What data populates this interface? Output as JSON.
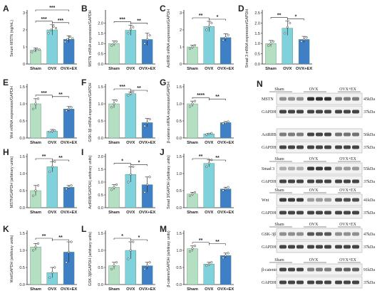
{
  "chart_data": [
    {
      "type": "bar",
      "panel": "A",
      "ylabel": "Serum MSTN (ng/mL)",
      "ylim": [
        0,
        3
      ],
      "yticks": [
        0,
        1,
        2,
        3
      ],
      "categories": [
        "Sham",
        "OVX",
        "OVX+EX"
      ],
      "values": [
        0.82,
        2.0,
        1.45
      ],
      "errors": [
        0.12,
        0.3,
        0.2
      ],
      "points": [
        [
          0.7,
          0.8,
          0.9,
          0.85
        ],
        [
          1.8,
          2.0,
          2.2,
          2.1
        ],
        [
          1.3,
          1.45,
          1.6,
          1.5
        ]
      ],
      "significance": [
        {
          "pair": "Sham-OVX",
          "label": "***"
        },
        {
          "pair": "Sham-OVX+EX",
          "label": "***"
        },
        {
          "pair": "OVX-OVX+EX",
          "label": "***"
        }
      ]
    },
    {
      "type": "bar",
      "panel": "B",
      "ylabel": "MSTN mRNA expression/GAPDH",
      "ylim": [
        0,
        2.5
      ],
      "yticks": [
        0.0,
        0.5,
        1.0,
        1.5,
        2.0
      ],
      "categories": [
        "Sham",
        "OVX",
        "OVX+EX"
      ],
      "values": [
        1.0,
        1.65,
        1.2
      ],
      "errors": [
        0.12,
        0.25,
        0.3
      ],
      "points": [
        [
          0.9,
          1.0,
          1.1
        ],
        [
          1.5,
          1.7,
          1.8
        ],
        [
          1.0,
          1.2,
          1.4
        ]
      ],
      "significance": [
        {
          "pair": "Sham-OVX",
          "label": "***"
        },
        {
          "pair": "OVX-OVX+EX",
          "label": "**"
        }
      ]
    },
    {
      "type": "bar",
      "panel": "C",
      "ylabel": "ActRIIB mRNA expression/GAPDH",
      "ylim": [
        0,
        3
      ],
      "yticks": [
        0,
        1,
        2,
        3
      ],
      "categories": [
        "Sham",
        "OVX",
        "OVX+EX"
      ],
      "values": [
        1.0,
        2.2,
        1.55
      ],
      "errors": [
        0.1,
        0.3,
        0.22
      ],
      "points": [
        [
          0.9,
          1.0,
          1.1
        ],
        [
          2.0,
          2.2,
          2.4
        ],
        [
          1.4,
          1.55,
          1.7
        ]
      ],
      "significance": [
        {
          "pair": "Sham-OVX",
          "label": "**"
        },
        {
          "pair": "OVX-OVX+EX",
          "label": "*"
        }
      ]
    },
    {
      "type": "bar",
      "panel": "D",
      "ylabel": "Smad 3 mRNA expression/GAPDH",
      "ylim": [
        0,
        2.5
      ],
      "yticks": [
        0.0,
        0.5,
        1.0,
        1.5,
        2.0,
        2.5
      ],
      "categories": [
        "Sham",
        "OVX",
        "OVX+EX"
      ],
      "values": [
        1.0,
        1.75,
        1.2
      ],
      "errors": [
        0.15,
        0.35,
        0.15
      ],
      "points": [
        [
          0.9,
          1.0,
          1.1
        ],
        [
          1.5,
          1.8,
          2.0
        ],
        [
          1.1,
          1.2,
          1.3
        ]
      ],
      "significance": [
        {
          "pair": "Sham-OVX",
          "label": "**"
        },
        {
          "pair": "OVX-OVX+EX",
          "label": "*"
        }
      ]
    },
    {
      "type": "bar",
      "panel": "E",
      "ylabel": "Wnt mRNA expression/GAPDH",
      "ylim": [
        0,
        1.5
      ],
      "yticks": [
        0.0,
        0.5,
        1.0,
        1.5
      ],
      "categories": [
        "Sham",
        "OVX",
        "OVX+EX"
      ],
      "values": [
        1.0,
        0.2,
        0.85
      ],
      "errors": [
        0.15,
        0.05,
        0.07
      ],
      "points": [
        [
          0.85,
          1.0,
          1.15
        ],
        [
          0.18,
          0.2,
          0.22
        ],
        [
          0.8,
          0.85,
          0.9
        ]
      ],
      "significance": [
        {
          "pair": "Sham-OVX",
          "label": "***"
        },
        {
          "pair": "OVX-OVX+EX",
          "label": "**"
        }
      ]
    },
    {
      "type": "bar",
      "panel": "F",
      "ylabel": "GSK-3β mRNA expression/GAPDH",
      "ylim": [
        0,
        1.5
      ],
      "yticks": [
        0.0,
        0.5,
        1.0,
        1.5
      ],
      "categories": [
        "Sham",
        "OVX",
        "OVX+EX"
      ],
      "values": [
        1.0,
        1.3,
        0.45
      ],
      "errors": [
        0.12,
        0.05,
        0.12
      ],
      "points": [
        [
          0.9,
          1.0,
          1.1
        ],
        [
          1.25,
          1.3,
          1.35
        ],
        [
          0.35,
          0.45,
          0.55
        ]
      ],
      "significance": [
        {
          "pair": "Sham-OVX",
          "label": "***"
        },
        {
          "pair": "OVX-OVX+EX",
          "label": "**"
        }
      ]
    },
    {
      "type": "bar",
      "panel": "G",
      "ylabel": "β-catenin mRNA expression/GAPDH",
      "ylim": [
        0,
        1.5
      ],
      "yticks": [
        0.0,
        0.5,
        1.0,
        1.5
      ],
      "categories": [
        "Sham",
        "OVX",
        "OVX+EX"
      ],
      "values": [
        1.0,
        0.12,
        0.45
      ],
      "errors": [
        0.08,
        0.02,
        0.03
      ],
      "points": [
        [
          0.92,
          1.0,
          1.08
        ],
        [
          0.1,
          0.12,
          0.14
        ],
        [
          0.42,
          0.45,
          0.48
        ]
      ],
      "significance": [
        {
          "pair": "Sham-OVX",
          "label": "****"
        },
        {
          "pair": "OVX-OVX+EX",
          "label": "**"
        }
      ]
    },
    {
      "type": "bar",
      "panel": "H",
      "ylabel": "MSTN/GAPDH (arbitrary units)",
      "ylim": [
        0,
        1.5
      ],
      "yticks": [
        0.0,
        0.5,
        1.0,
        1.5
      ],
      "categories": [
        "Sham",
        "OVX",
        "OVX+EX"
      ],
      "values": [
        0.5,
        1.2,
        0.6
      ],
      "errors": [
        0.15,
        0.15,
        0.05
      ],
      "points": [
        [
          0.35,
          0.5,
          0.65
        ],
        [
          1.05,
          1.2,
          1.35
        ],
        [
          0.55,
          0.6,
          0.65
        ]
      ],
      "significance": [
        {
          "pair": "Sham-OVX",
          "label": "**"
        },
        {
          "pair": "OVX-OVX+EX",
          "label": "**"
        }
      ]
    },
    {
      "type": "bar",
      "panel": "I",
      "ylabel": "ActRIIB/GAPDH( arbitrary units)",
      "ylim": [
        0,
        2
      ],
      "yticks": [
        0.0,
        0.5,
        1.0,
        1.5,
        2.0
      ],
      "categories": [
        "Sham",
        "OVX",
        "OVX+EX"
      ],
      "values": [
        0.8,
        1.3,
        0.9
      ],
      "errors": [
        0.1,
        0.3,
        0.3
      ],
      "points": [
        [
          0.7,
          0.8,
          0.9
        ],
        [
          1.0,
          1.3,
          1.6
        ],
        [
          0.6,
          0.9,
          1.2
        ]
      ],
      "significance": [
        {
          "pair": "Sham-OVX",
          "label": "*"
        },
        {
          "pair": "OVX-OVX+EX",
          "label": "*"
        }
      ]
    },
    {
      "type": "bar",
      "panel": "J",
      "ylabel": "Smad 3/GAPDH (arbitrary units)",
      "ylim": [
        0,
        1.5
      ],
      "yticks": [
        0.0,
        0.5,
        1.0,
        1.5
      ],
      "categories": [
        "Sham",
        "OVX",
        "OVX+EX"
      ],
      "values": [
        0.4,
        1.3,
        0.55
      ],
      "errors": [
        0.05,
        0.1,
        0.05
      ],
      "points": [
        [
          0.35,
          0.4,
          0.45
        ],
        [
          1.2,
          1.3,
          1.4
        ],
        [
          0.5,
          0.55,
          0.6
        ]
      ],
      "significance": [
        {
          "pair": "Sham-OVX",
          "label": "**"
        },
        {
          "pair": "OVX-OVX+EX",
          "label": "**"
        }
      ]
    },
    {
      "type": "bar",
      "panel": "K",
      "ylabel": "Wnt/GAPDH (arbitrary units)",
      "ylim": [
        0,
        1.5
      ],
      "yticks": [
        0.0,
        0.5,
        1.0,
        1.5
      ],
      "categories": [
        "Sham",
        "OVX",
        "OVX+EX"
      ],
      "values": [
        1.1,
        0.35,
        0.95
      ],
      "errors": [
        0.1,
        0.15,
        0.3
      ],
      "points": [
        [
          1.0,
          1.1,
          1.2
        ],
        [
          0.2,
          0.35,
          0.5
        ],
        [
          0.65,
          0.95,
          1.25
        ]
      ],
      "significance": [
        {
          "pair": "Sham-OVX",
          "label": "**"
        },
        {
          "pair": "OVX-OVX+EX",
          "label": "**"
        }
      ]
    },
    {
      "type": "bar",
      "panel": "L",
      "ylabel": "GSK-3β/GAPDH (arbitrary units)",
      "ylim": [
        0,
        1.5
      ],
      "yticks": [
        0.0,
        0.5,
        1.0,
        1.5
      ],
      "categories": [
        "Sham",
        "OVX",
        "OVX+EX"
      ],
      "values": [
        0.55,
        1.0,
        0.55
      ],
      "errors": [
        0.1,
        0.25,
        0.1
      ],
      "points": [
        [
          0.45,
          0.55,
          0.65
        ],
        [
          0.75,
          1.0,
          1.25
        ],
        [
          0.45,
          0.55,
          0.65
        ]
      ],
      "significance": [
        {
          "pair": "Sham-OVX",
          "label": "*"
        },
        {
          "pair": "OVX-OVX+EX",
          "label": "*"
        }
      ]
    },
    {
      "type": "bar",
      "panel": "M",
      "ylabel": "β-catenin/GAPDH (arbitrary units)",
      "ylim": [
        0,
        1.5
      ],
      "yticks": [
        0.0,
        0.5,
        1.0,
        1.5
      ],
      "categories": [
        "Sham",
        "OVX",
        "OVX+EX"
      ],
      "values": [
        1.05,
        0.6,
        0.85
      ],
      "errors": [
        0.08,
        0.05,
        0.07
      ],
      "points": [
        [
          0.97,
          1.05,
          1.13
        ],
        [
          0.55,
          0.6,
          0.65
        ],
        [
          0.78,
          0.85,
          0.92
        ]
      ],
      "significance": [
        {
          "pair": "Sham-OVX",
          "label": "**"
        },
        {
          "pair": "OVX-OVX+EX",
          "label": "**"
        }
      ]
    }
  ],
  "colors": {
    "sham": "#b5dfc2",
    "ovx": "#7fd2dc",
    "ovx_ex": "#3f7fc6",
    "edge": "#4f8f6a",
    "axis": "#222222"
  },
  "western_blot": {
    "panel": "N",
    "blocks": [
      {
        "groups": [
          "Sham",
          "OVX",
          "OVX+EX"
        ],
        "rows": [
          {
            "label": "MSTN",
            "size": "45kDa",
            "intensity": [
              0.4,
              0.9,
              0.5
            ]
          },
          {
            "label": "GAPDH",
            "size": "37kDa",
            "intensity": [
              0.8,
              0.8,
              0.8
            ]
          }
        ]
      },
      {
        "groups": [],
        "rows": [
          {
            "label": "ActRIIB",
            "size": "56kDa",
            "intensity": [
              0.5,
              0.8,
              0.55
            ]
          },
          {
            "label": "GAPDH",
            "size": "37kDa",
            "intensity": [
              0.8,
              0.8,
              0.8
            ]
          }
        ]
      },
      {
        "groups": [
          "Sham",
          "OVX",
          "OVX+EX"
        ],
        "rows": [
          {
            "label": "Smad 3",
            "size": "55kDa",
            "intensity": [
              0.25,
              0.85,
              0.35
            ]
          },
          {
            "label": "GAPDH",
            "size": "37kDa",
            "intensity": [
              0.8,
              0.8,
              0.8
            ]
          }
        ]
      },
      {
        "groups": [
          "Sham",
          "OVX",
          "OVX+EX"
        ],
        "rows": [
          {
            "label": "Wnt",
            "size": "41kDa",
            "intensity": [
              0.85,
              0.35,
              0.75
            ]
          },
          {
            "label": "GAPDH",
            "size": "37kDa",
            "intensity": [
              0.8,
              0.8,
              0.8
            ]
          }
        ]
      },
      {
        "groups": [
          "Sham",
          "OVX",
          "OVX+EX"
        ],
        "rows": [
          {
            "label": "GSK-3β",
            "size": "47kDa",
            "intensity": [
              0.4,
              0.7,
              0.4
            ]
          },
          {
            "label": "GAPDH",
            "size": "37kDa",
            "intensity": [
              0.8,
              0.8,
              0.8
            ]
          }
        ]
      },
      {
        "groups": [
          "Sham",
          "OVX",
          "OVX+EX"
        ],
        "rows": [
          {
            "label": "β-catenin",
            "size": "91kDa",
            "intensity": [
              0.8,
              0.5,
              0.65
            ]
          },
          {
            "label": "GAPDH",
            "size": "37kDa",
            "intensity": [
              0.8,
              0.8,
              0.8
            ]
          }
        ]
      }
    ]
  }
}
